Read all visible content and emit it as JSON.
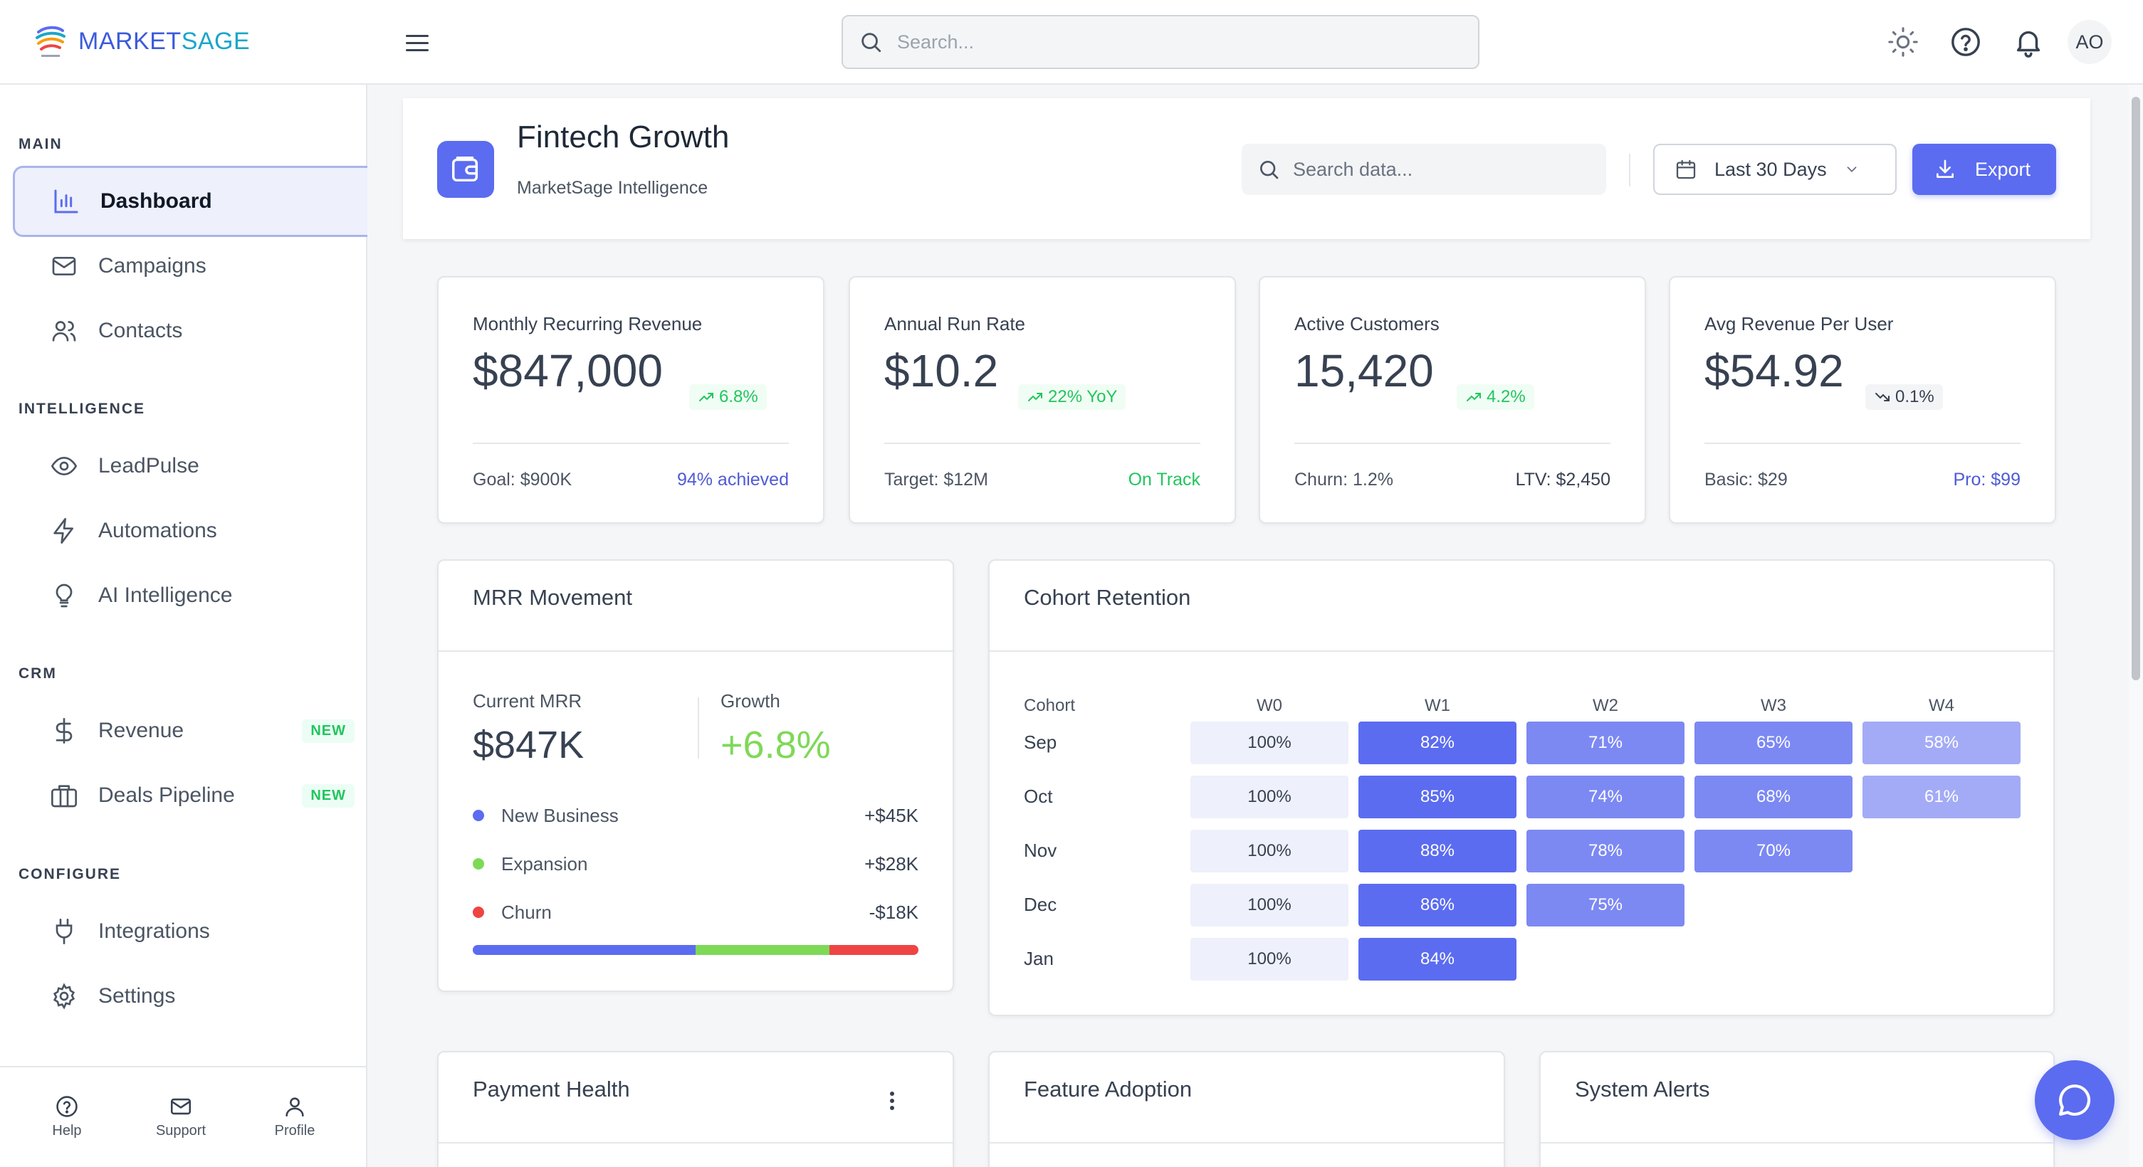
{
  "app": {
    "brand_part1": "MARKET",
    "brand_part2": "SAGE",
    "search_placeholder": "Search...",
    "user_initials": "AO",
    "accent": "#5b6cf0"
  },
  "sidebar": {
    "sections": [
      {
        "label": "MAIN"
      },
      {
        "label": "INTELLIGENCE"
      },
      {
        "label": "CRM"
      },
      {
        "label": "CONFIGURE"
      }
    ],
    "items": [
      {
        "label": "Dashboard",
        "icon": "bar-chart-icon",
        "active": true
      },
      {
        "label": "Campaigns",
        "icon": "mail-icon"
      },
      {
        "label": "Contacts",
        "icon": "users-icon"
      },
      {
        "label": "LeadPulse",
        "icon": "eye-icon"
      },
      {
        "label": "Automations",
        "icon": "bolt-icon"
      },
      {
        "label": "AI Intelligence",
        "icon": "lightbulb-icon"
      },
      {
        "label": "Revenue",
        "icon": "dollar-icon",
        "badge": "NEW"
      },
      {
        "label": "Deals Pipeline",
        "icon": "briefcase-icon",
        "badge": "NEW"
      },
      {
        "label": "Integrations",
        "icon": "plug-icon"
      },
      {
        "label": "Settings",
        "icon": "gear-icon"
      }
    ],
    "footer": [
      {
        "label": "Help",
        "icon": "help-icon"
      },
      {
        "label": "Support",
        "icon": "mail-icon"
      },
      {
        "label": "Profile",
        "icon": "user-icon"
      }
    ]
  },
  "header": {
    "title": "Fintech Growth",
    "subtitle": "MarketSage Intelligence",
    "search_placeholder": "Search data...",
    "date_range": "Last 30 Days",
    "export_label": "Export"
  },
  "kpis": [
    {
      "label": "Monthly Recurring Revenue",
      "value": "$847,000",
      "delta": "6.8%",
      "trend": "up",
      "foot_left": "Goal: $900K",
      "foot_right": "94% achieved",
      "foot_right_color": "#4f5bd5"
    },
    {
      "label": "Annual Run Rate",
      "value": "$10.2",
      "delta": "22% YoY",
      "trend": "up",
      "foot_left": "Target: $12M",
      "foot_right": "On Track",
      "foot_right_color": "#22c55e"
    },
    {
      "label": "Active Customers",
      "value": "15,420",
      "delta": "4.2%",
      "trend": "up",
      "foot_left": "Churn: 1.2%",
      "foot_right": "LTV: $2,450",
      "foot_right_color": "#374151"
    },
    {
      "label": "Avg Revenue Per User",
      "value": "$54.92",
      "delta": "0.1%",
      "trend": "down",
      "foot_left": "Basic: $29",
      "foot_right": "Pro: $99",
      "foot_right_color": "#4f5bd5"
    }
  ],
  "mrr_movement": {
    "title": "MRR Movement",
    "current_label": "Current MRR",
    "current_value": "$847K",
    "growth_label": "Growth",
    "growth_value": "+6.8%",
    "rows": [
      {
        "label": "New Business",
        "value": "+$45K",
        "color": "#5b6cf0"
      },
      {
        "label": "Expansion",
        "value": "+$28K",
        "color": "#7ed957"
      },
      {
        "label": "Churn",
        "value": "-$18K",
        "color": "#ef4444"
      }
    ],
    "bar_shares": [
      0.5,
      0.3,
      0.2
    ]
  },
  "cohort": {
    "title": "Cohort Retention",
    "header_label": "Cohort",
    "weeks": [
      "W0",
      "W1",
      "W2",
      "W3",
      "W4"
    ],
    "rows": [
      {
        "label": "Sep",
        "values": [
          "100%",
          "82%",
          "71%",
          "65%",
          "58%"
        ]
      },
      {
        "label": "Oct",
        "values": [
          "100%",
          "85%",
          "74%",
          "68%",
          "61%"
        ]
      },
      {
        "label": "Nov",
        "values": [
          "100%",
          "88%",
          "78%",
          "70%"
        ]
      },
      {
        "label": "Dec",
        "values": [
          "100%",
          "86%",
          "75%"
        ]
      },
      {
        "label": "Jan",
        "values": [
          "100%",
          "84%"
        ]
      }
    ]
  },
  "bottom_cards": [
    {
      "title": "Payment Health"
    },
    {
      "title": "Feature Adoption"
    },
    {
      "title": "System Alerts"
    }
  ]
}
